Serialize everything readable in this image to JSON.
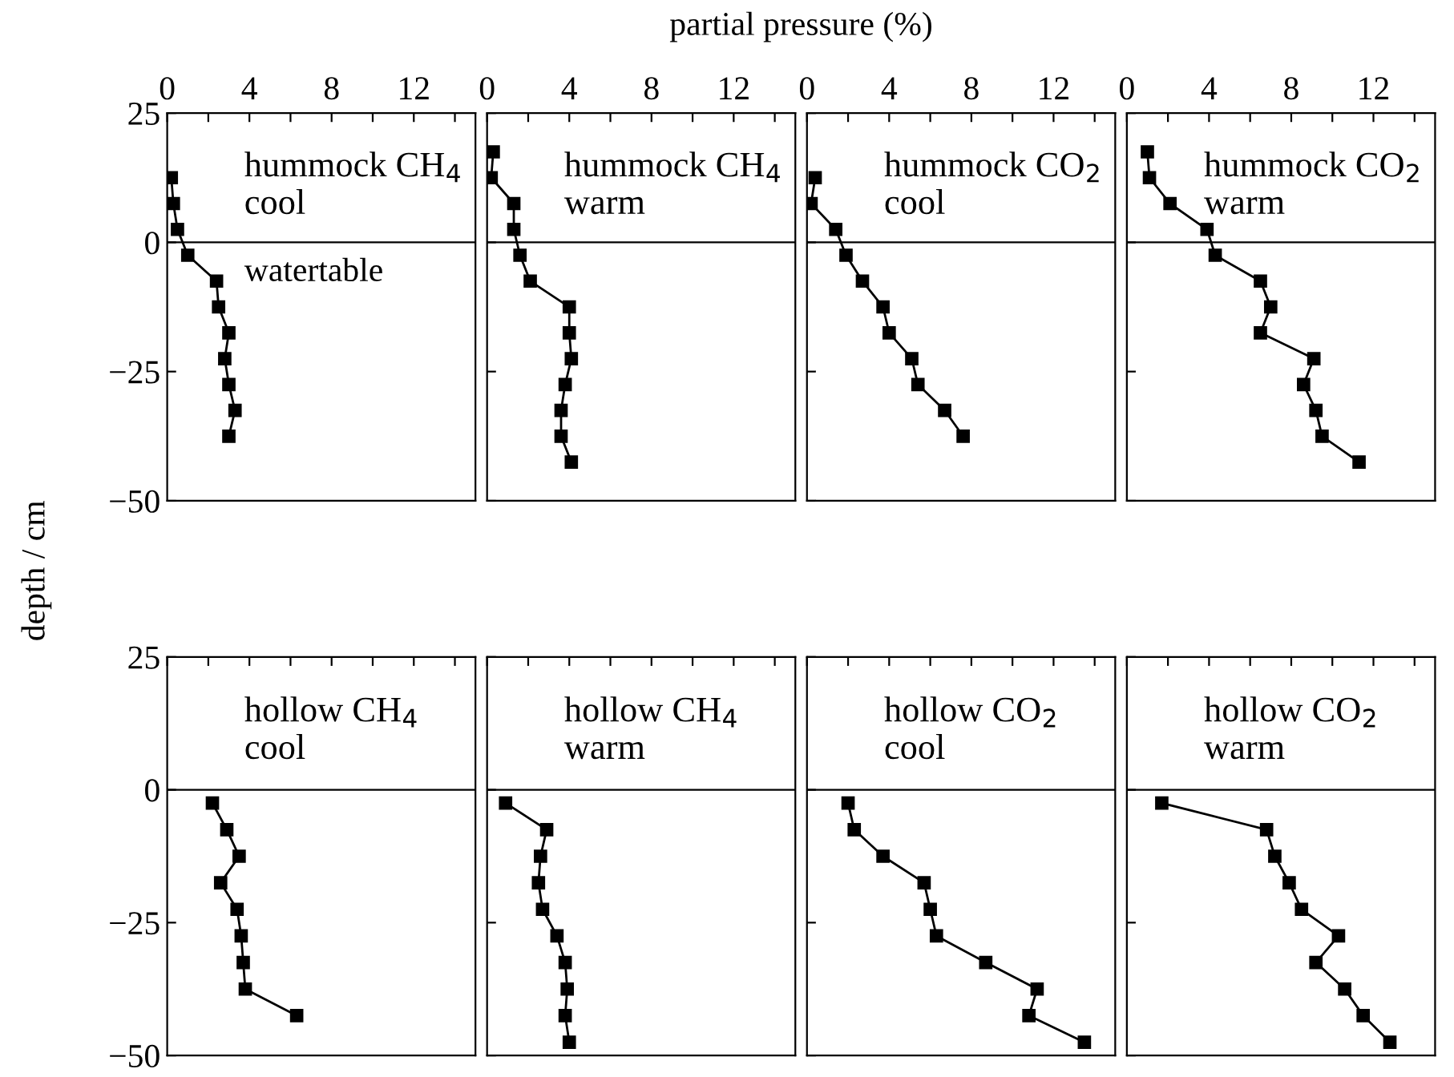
{
  "chart_data": [
    {
      "type": "line",
      "title": "hummock CH$_{4}$\ncool",
      "xlabel": "partial pressure (%)",
      "ylabel": "depth / cm",
      "series": [
        {
          "color": "#000000",
          "x": [
            0.2,
            0.3,
            0.5,
            1.0,
            2.4,
            2.5,
            3.0,
            2.8,
            3.0,
            3.3,
            3.0
          ],
          "values": [
            12.5,
            7.5,
            2.5,
            -2.5,
            -7.5,
            -12.5,
            -17.5,
            -22.5,
            -27.5,
            -32.5,
            -37.5
          ]
        }
      ],
      "xlim": [
        0,
        15
      ],
      "xticks": [
        0,
        {
          "value": 2,
          "label": null
        },
        4,
        {
          "value": 6,
          "label": null
        },
        8,
        {
          "value": 10,
          "label": null
        },
        12,
        {
          "value": 14,
          "label": null
        }
      ],
      "ylim": [
        -50,
        25
      ],
      "yticks": [
        25,
        0,
        {
          "value": -25,
          "label": "−25"
        },
        {
          "value": -50,
          "label": "−50"
        }
      ],
      "ref_lines": [
        {
          "axis": "y",
          "value": 0,
          "label": "watertable",
          "color": "#000000"
        }
      ],
      "marker": "square",
      "line_style": "solid",
      "grid": false,
      "legend": false
    },
    {
      "type": "line",
      "title": "hummock CH$_{4}$\nwarm",
      "series": [
        {
          "color": "#000000",
          "x": [
            0.3,
            0.2,
            1.3,
            1.3,
            1.6,
            2.1,
            4.0,
            4.0,
            4.1,
            3.8,
            3.6,
            3.6,
            4.1
          ],
          "values": [
            17.5,
            12.5,
            7.5,
            2.5,
            -2.5,
            -7.5,
            -12.5,
            -17.5,
            -22.5,
            -27.5,
            -32.5,
            -37.5,
            -42.5
          ]
        }
      ],
      "xlim": [
        0,
        15
      ],
      "xticks": [
        0,
        {
          "value": 2,
          "label": null
        },
        4,
        {
          "value": 6,
          "label": null
        },
        8,
        {
          "value": 10,
          "label": null
        },
        12,
        {
          "value": 14,
          "label": null
        }
      ],
      "ylim": [
        -50,
        25
      ],
      "yticks": [
        {
          "value": 25,
          "label": null
        },
        {
          "value": 0,
          "label": null
        },
        {
          "value": -25,
          "label": null
        },
        {
          "value": -50,
          "label": null
        }
      ],
      "ref_lines": [
        {
          "axis": "y",
          "value": 0,
          "color": "#000000"
        }
      ],
      "marker": "square",
      "line_style": "solid",
      "grid": false,
      "legend": false,
      "tick_labels": "x"
    },
    {
      "type": "line",
      "title": "hummock CO$_{2}$\ncool",
      "series": [
        {
          "color": "#000000",
          "x": [
            0.4,
            0.2,
            1.4,
            1.9,
            2.7,
            3.7,
            4.0,
            5.1,
            5.4,
            6.7,
            7.6
          ],
          "values": [
            12.5,
            7.5,
            2.5,
            -2.5,
            -7.5,
            -12.5,
            -17.5,
            -22.5,
            -27.5,
            -32.5,
            -37.5
          ]
        }
      ],
      "xlim": [
        0,
        15
      ],
      "xticks": [
        0,
        {
          "value": 2,
          "label": null
        },
        4,
        {
          "value": 6,
          "label": null
        },
        8,
        {
          "value": 10,
          "label": null
        },
        12,
        {
          "value": 14,
          "label": null
        }
      ],
      "ylim": [
        -50,
        25
      ],
      "yticks": [
        {
          "value": 25,
          "label": null
        },
        {
          "value": 0,
          "label": null
        },
        {
          "value": -25,
          "label": null
        },
        {
          "value": -50,
          "label": null
        }
      ],
      "ref_lines": [
        {
          "axis": "y",
          "value": 0,
          "color": "#000000"
        }
      ],
      "marker": "square",
      "line_style": "solid",
      "grid": false,
      "legend": false,
      "tick_labels": "x"
    },
    {
      "type": "line",
      "title": "hummock CO$_{2}$\nwarm",
      "series": [
        {
          "color": "#000000",
          "x": [
            1.0,
            1.1,
            2.1,
            3.9,
            4.3,
            6.5,
            7.0,
            6.5,
            9.1,
            8.6,
            9.2,
            9.5,
            11.3
          ],
          "values": [
            17.5,
            12.5,
            7.5,
            2.5,
            -2.5,
            -7.5,
            -12.5,
            -17.5,
            -22.5,
            -27.5,
            -32.5,
            -37.5,
            -42.5
          ]
        }
      ],
      "xlim": [
        0,
        15
      ],
      "xticks": [
        0,
        {
          "value": 2,
          "label": null
        },
        4,
        {
          "value": 6,
          "label": null
        },
        8,
        {
          "value": 10,
          "label": null
        },
        12,
        {
          "value": 14,
          "label": null
        }
      ],
      "ylim": [
        -50,
        25
      ],
      "yticks": [
        {
          "value": 25,
          "label": null
        },
        {
          "value": 0,
          "label": null
        },
        {
          "value": -25,
          "label": null
        },
        {
          "value": -50,
          "label": null
        }
      ],
      "ref_lines": [
        {
          "axis": "y",
          "value": 0,
          "color": "#000000"
        }
      ],
      "marker": "square",
      "line_style": "solid",
      "grid": false,
      "legend": false,
      "tick_labels": "x"
    },
    {
      "type": "line",
      "title": "hollow CH$_{4}$\ncool",
      "series": [
        {
          "color": "#000000",
          "x": [
            2.2,
            2.9,
            3.5,
            2.6,
            3.4,
            3.6,
            3.7,
            3.8,
            6.3
          ],
          "values": [
            -2.5,
            -7.5,
            -12.5,
            -17.5,
            -22.5,
            -27.5,
            -32.5,
            -37.5,
            -42.5
          ]
        }
      ],
      "xlim": [
        0,
        15
      ],
      "xticks": [
        {
          "value": 0,
          "label": null
        },
        {
          "value": 2,
          "label": null
        },
        {
          "value": 4,
          "label": null
        },
        {
          "value": 6,
          "label": null
        },
        {
          "value": 8,
          "label": null
        },
        {
          "value": 10,
          "label": null
        },
        {
          "value": 12,
          "label": null
        },
        {
          "value": 14,
          "label": null
        }
      ],
      "ylim": [
        -50,
        25
      ],
      "yticks": [
        25,
        0,
        {
          "value": -25,
          "label": "−25"
        },
        {
          "value": -50,
          "label": "−50"
        }
      ],
      "ref_lines": [
        {
          "axis": "y",
          "value": 0,
          "color": "#000000"
        }
      ],
      "marker": "square",
      "line_style": "solid",
      "grid": false,
      "legend": false,
      "tick_labels": "y"
    },
    {
      "type": "line",
      "title": "hollow CH$_{4}$\nwarm",
      "series": [
        {
          "color": "#000000",
          "x": [
            0.9,
            2.9,
            2.6,
            2.5,
            2.7,
            3.4,
            3.8,
            3.9,
            3.8,
            4.0
          ],
          "values": [
            -2.5,
            -7.5,
            -12.5,
            -17.5,
            -22.5,
            -27.5,
            -32.5,
            -37.5,
            -42.5,
            -47.5
          ]
        }
      ],
      "xlim": [
        0,
        15
      ],
      "xticks": [
        {
          "value": 0,
          "label": null
        },
        {
          "value": 2,
          "label": null
        },
        {
          "value": 4,
          "label": null
        },
        {
          "value": 6,
          "label": null
        },
        {
          "value": 8,
          "label": null
        },
        {
          "value": 10,
          "label": null
        },
        {
          "value": 12,
          "label": null
        },
        {
          "value": 14,
          "label": null
        }
      ],
      "ylim": [
        -50,
        25
      ],
      "yticks": [
        {
          "value": 25,
          "label": null
        },
        {
          "value": 0,
          "label": null
        },
        {
          "value": -25,
          "label": null
        },
        {
          "value": -50,
          "label": null
        }
      ],
      "ref_lines": [
        {
          "axis": "y",
          "value": 0,
          "color": "#000000"
        }
      ],
      "marker": "square",
      "line_style": "solid",
      "grid": false,
      "legend": false,
      "tick_labels": false
    },
    {
      "type": "line",
      "title": "hollow CO$_{2}$\ncool",
      "series": [
        {
          "color": "#000000",
          "x": [
            2.0,
            2.3,
            3.7,
            5.7,
            6.0,
            6.3,
            8.7,
            11.2,
            10.8,
            13.5
          ],
          "values": [
            -2.5,
            -7.5,
            -12.5,
            -17.5,
            -22.5,
            -27.5,
            -32.5,
            -37.5,
            -42.5,
            -47.5
          ]
        }
      ],
      "xlim": [
        0,
        15
      ],
      "xticks": [
        {
          "value": 0,
          "label": null
        },
        {
          "value": 2,
          "label": null
        },
        {
          "value": 4,
          "label": null
        },
        {
          "value": 6,
          "label": null
        },
        {
          "value": 8,
          "label": null
        },
        {
          "value": 10,
          "label": null
        },
        {
          "value": 12,
          "label": null
        },
        {
          "value": 14,
          "label": null
        }
      ],
      "ylim": [
        -50,
        25
      ],
      "yticks": [
        {
          "value": 25,
          "label": null
        },
        {
          "value": 0,
          "label": null
        },
        {
          "value": -25,
          "label": null
        },
        {
          "value": -50,
          "label": null
        }
      ],
      "ref_lines": [
        {
          "axis": "y",
          "value": 0,
          "color": "#000000"
        }
      ],
      "marker": "square",
      "line_style": "solid",
      "grid": false,
      "legend": false,
      "tick_labels": false
    },
    {
      "type": "line",
      "title": "hollow CO$_{2}$\nwarm",
      "series": [
        {
          "color": "#000000",
          "x": [
            1.7,
            6.8,
            7.2,
            7.9,
            8.5,
            10.3,
            9.2,
            10.6,
            11.5,
            12.8
          ],
          "values": [
            -2.5,
            -7.5,
            -12.5,
            -17.5,
            -22.5,
            -27.5,
            -32.5,
            -37.5,
            -42.5,
            -47.5
          ]
        }
      ],
      "xlim": [
        0,
        15
      ],
      "xticks": [
        {
          "value": 0,
          "label": null
        },
        {
          "value": 2,
          "label": null
        },
        {
          "value": 4,
          "label": null
        },
        {
          "value": 6,
          "label": null
        },
        {
          "value": 8,
          "label": null
        },
        {
          "value": 10,
          "label": null
        },
        {
          "value": 12,
          "label": null
        },
        {
          "value": 14,
          "label": null
        }
      ],
      "ylim": [
        -50,
        25
      ],
      "yticks": [
        {
          "value": 25,
          "label": null
        },
        {
          "value": 0,
          "label": null
        },
        {
          "value": -25,
          "label": null
        },
        {
          "value": -50,
          "label": null
        }
      ],
      "ref_lines": [
        {
          "axis": "y",
          "value": 0,
          "color": "#000000"
        }
      ],
      "marker": "square",
      "line_style": "solid",
      "grid": false,
      "legend": false,
      "tick_labels": false
    }
  ]
}
